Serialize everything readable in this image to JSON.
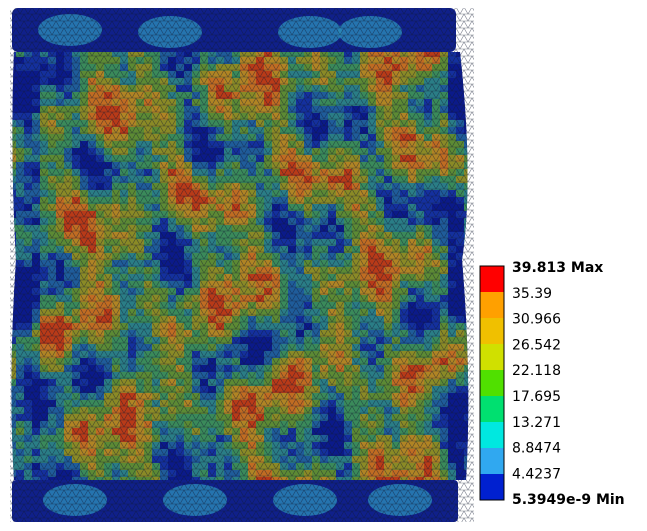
{
  "legend": {
    "labels": [
      "39.813 Max",
      "35.39",
      "30.966",
      "26.542",
      "22.118",
      "17.695",
      "13.271",
      "8.8474",
      "4.4237",
      "5.3949e-9 Min"
    ]
  }
}
